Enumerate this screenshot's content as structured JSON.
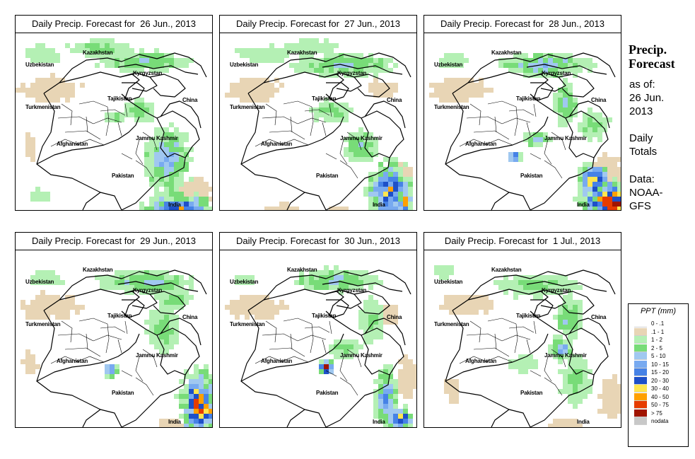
{
  "panels": [
    {
      "title": "Daily Precip. Forecast for  26 Jun., 2013"
    },
    {
      "title": "Daily Precip. Forecast for  27 Jun., 2013"
    },
    {
      "title": "Daily Precip. Forecast for  28 Jun., 2013"
    },
    {
      "title": "Daily Precip. Forecast for  29 Jun., 2013"
    },
    {
      "title": "Daily Precip. Forecast for  30 Jun., 2013"
    },
    {
      "title": "Daily Precip. Forecast for  1 Jul., 2013"
    }
  ],
  "map_labels": {
    "kazakhstan": "Kazakhstan",
    "uzbekistan": "Uzbekistan",
    "kyrgyzstan": "Kyrgyzstan",
    "tajikistan": "Tajikistan",
    "turkmenistan": "Turkmenistan",
    "china": "China",
    "afghanistan": "Afghanistan",
    "jammu_kashmir": "Jammu Kashmir",
    "pakistan": "Pakistan",
    "india": "India"
  },
  "side": {
    "heading_line1": "Precip.",
    "heading_line2": "Forecast",
    "as_of": "as of:",
    "date": "26 Jun.",
    "year": "2013",
    "daily": "Daily",
    "totals": "Totals",
    "data_label": "Data:",
    "source1": "NOAA-",
    "source2": "GFS"
  },
  "legend": {
    "title": "PPT (mm)",
    "items": [
      {
        "label": "0 - .1",
        "color": "#ffffff"
      },
      {
        "label": ".1 - 1",
        "color": "#e8d5b5"
      },
      {
        "label": "1 - 2",
        "color": "#b4f0b4"
      },
      {
        "label": "2 - 5",
        "color": "#78dc78"
      },
      {
        "label": "5 - 10",
        "color": "#a0c8f0"
      },
      {
        "label": "10 - 15",
        "color": "#78aaf0"
      },
      {
        "label": "15 - 20",
        "color": "#4682e6"
      },
      {
        "label": "20 - 30",
        "color": "#1e50c8"
      },
      {
        "label": "30 - 40",
        "color": "#ffe650"
      },
      {
        "label": "40 - 50",
        "color": "#ffa000"
      },
      {
        "label": "50 - 75",
        "color": "#e63c00"
      },
      {
        "label": "> 75",
        "color": "#a01400"
      },
      {
        "label": "nodata",
        "color": "#c8c8c8"
      }
    ]
  }
}
